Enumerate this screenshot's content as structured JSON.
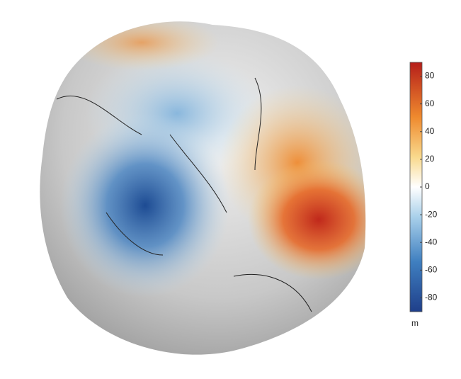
{
  "colorbar": {
    "unit": "m",
    "lim": [
      -90,
      90
    ],
    "ticks": [
      -80,
      -60,
      -40,
      -20,
      0,
      20,
      40,
      60,
      80
    ]
  }
}
